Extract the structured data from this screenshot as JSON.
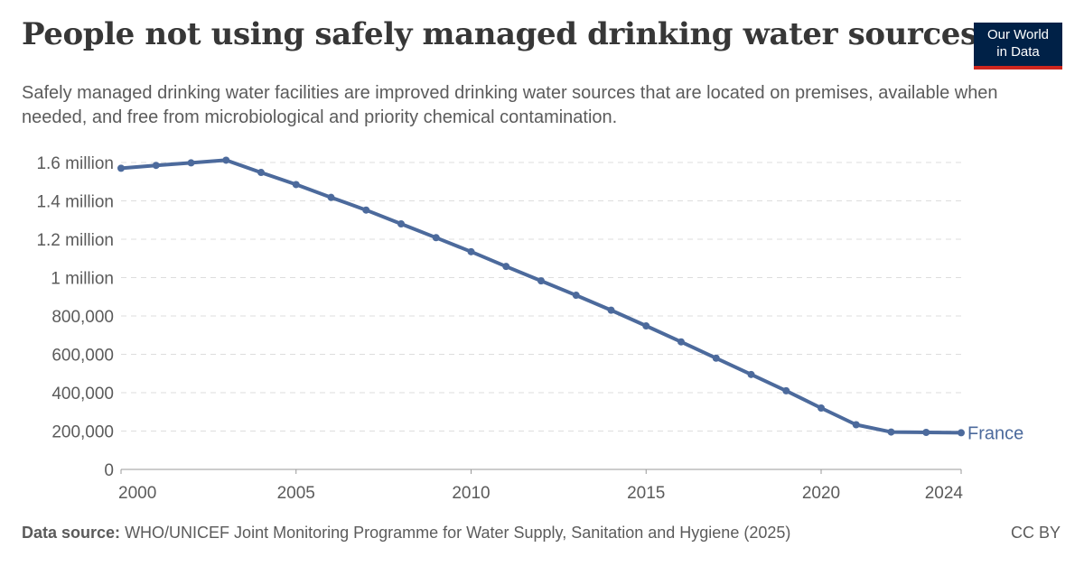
{
  "header": {
    "title": "People not using safely managed drinking water sources",
    "subtitle": "Safely managed drinking water facilities are improved drinking water sources that are located on premises, available when needed, and free from microbiological and priority chemical contamination."
  },
  "logo": {
    "line1": "Our World",
    "line2": "in Data",
    "bg_color": "#002147",
    "accent_color": "#ce261e"
  },
  "footer": {
    "source_label": "Data source:",
    "source_text": "WHO/UNICEF Joint Monitoring Programme for Water Supply, Sanitation and Hygiene (2025)",
    "license": "CC BY"
  },
  "chart_data": {
    "type": "line",
    "title": "People not using safely managed drinking water sources",
    "xlabel": "",
    "ylabel": "",
    "xlim": [
      2000,
      2024
    ],
    "ylim": [
      0,
      1600000
    ],
    "grid": true,
    "x_ticks": [
      2000,
      2005,
      2010,
      2015,
      2020,
      2024
    ],
    "y_ticks": [
      0,
      200000,
      400000,
      600000,
      800000,
      1000000,
      1200000,
      1400000,
      1600000
    ],
    "y_tick_labels": [
      "0",
      "200,000",
      "400,000",
      "600,000",
      "800,000",
      "1 million",
      "1.2 million",
      "1.4 million",
      "1.6 million"
    ],
    "line_color": "#4c6a9c",
    "series": [
      {
        "name": "France",
        "x": [
          2000,
          2001,
          2002,
          2003,
          2004,
          2005,
          2006,
          2007,
          2008,
          2009,
          2010,
          2011,
          2012,
          2013,
          2014,
          2015,
          2016,
          2017,
          2018,
          2019,
          2020,
          2021,
          2022,
          2023,
          2024
        ],
        "values": [
          1570000,
          1585000,
          1598000,
          1612000,
          1548000,
          1485000,
          1418000,
          1352000,
          1280000,
          1208000,
          1135000,
          1058000,
          983000,
          908000,
          830000,
          748000,
          665000,
          580000,
          495000,
          410000,
          320000,
          233000,
          195000,
          193000,
          191000
        ]
      }
    ]
  }
}
